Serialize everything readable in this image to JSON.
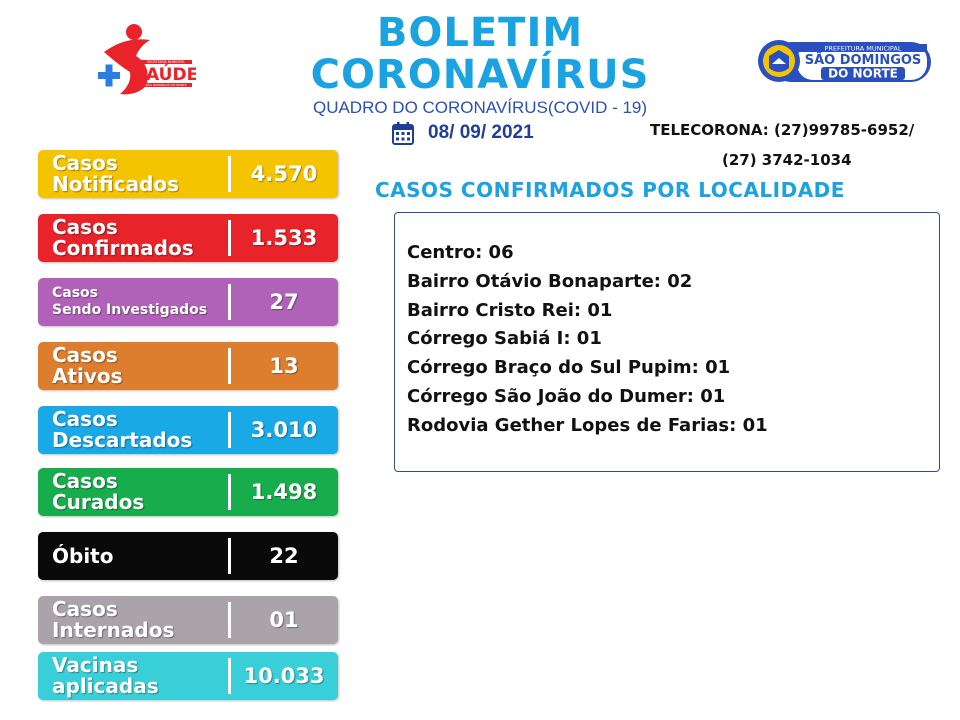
{
  "header": {
    "title_line1": "BOLETIM",
    "title_line2": "CORONAVÍRUS",
    "subtitle": "QUADRO DO CORONAVÍRUS(COVID - 19)",
    "date": "08/ 09/ 2021",
    "telecorona_line1": "TELECORONA: (27)99785-6952/",
    "telecorona_line2": "(27) 3742-1034"
  },
  "logos": {
    "saude_text": "SAÚDE",
    "saude_small_top": "SECRETARIA MUNICIPAL",
    "saude_small_bottom": "SÃO DOMINGOS DO NORTE",
    "prefeitura_top": "PREFEITURA MUNICIPAL",
    "prefeitura_name1": "SÃO DOMINGOS",
    "prefeitura_name2": "DO NORTE"
  },
  "stats": [
    {
      "line1": "Casos",
      "line2": "Notificados",
      "value": "4.570",
      "color": "#f5c400"
    },
    {
      "line1": "Casos",
      "line2": "Confirmados",
      "value": "1.533",
      "color": "#e8232a"
    },
    {
      "line1": "Casos",
      "line2": "Sendo Investigados",
      "value": "27",
      "color": "#b062b8"
    },
    {
      "line1": "Casos",
      "line2": "Ativos",
      "value": "13",
      "color": "#dd7d2e"
    },
    {
      "line1": "Casos",
      "line2": "Descartados",
      "value": "3.010",
      "color": "#19a9e6"
    },
    {
      "line1": "Casos",
      "line2": "Curados",
      "value": "1.498",
      "color": "#18ad4c"
    },
    {
      "line1": "Óbito",
      "line2": "",
      "value": "22",
      "color": "#0a0a0a"
    },
    {
      "line1": "Casos",
      "line2": "Internados",
      "value": "01",
      "color": "#aaa3aa"
    },
    {
      "line1": "Vacinas",
      "line2": "aplicadas",
      "value": "10.033",
      "color": "#39cfd8"
    }
  ],
  "localidade": {
    "title": "CASOS CONFIRMADOS POR LOCALIDADE",
    "items": [
      "Centro: 06",
      "Bairro Otávio Bonaparte: 02",
      "Bairro Cristo Rei: 01",
      "Córrego Sabiá I: 01",
      "Córrego Braço do Sul Pupim: 01",
      "Córrego São João do Dumer: 01",
      "Rodovia Gether Lopes de Farias: 01"
    ]
  }
}
